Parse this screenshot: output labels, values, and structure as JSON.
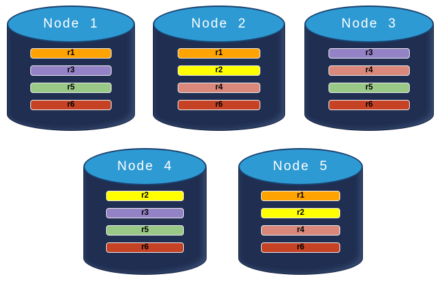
{
  "diagram": {
    "description": "Five database nodes each storing four data replicas",
    "colors": {
      "cylinder_body": "#1F2E51",
      "cylinder_top": "#2E9AD3",
      "node_label_text": "#FFFFFF",
      "bar_border": "#ECECEC",
      "bar_text": "#000000"
    },
    "replica_colors": {
      "r1": "#FFA302",
      "r2": "#FFFF00",
      "r3": "#9482C6",
      "r4": "#D9887B",
      "r5": "#9AC987",
      "r6": "#C64224"
    },
    "nodes": [
      {
        "label": "Node  1",
        "replicas": [
          "r1",
          "r3",
          "r5",
          "r6"
        ]
      },
      {
        "label": "Node  2",
        "replicas": [
          "r1",
          "r2",
          "r4",
          "r6"
        ]
      },
      {
        "label": "Node  3",
        "replicas": [
          "r3",
          "r4",
          "r5",
          "r6"
        ]
      },
      {
        "label": "Node  4",
        "replicas": [
          "r2",
          "r3",
          "r5",
          "r6"
        ]
      },
      {
        "label": "Node  5",
        "replicas": [
          "r1",
          "r2",
          "r4",
          "r6"
        ]
      }
    ]
  }
}
